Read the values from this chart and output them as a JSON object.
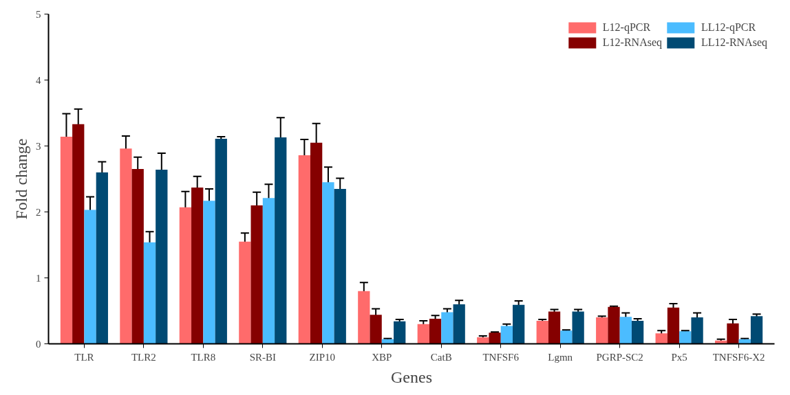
{
  "chart_data": {
    "type": "bar",
    "xlabel": "Genes",
    "ylabel": "Fold change",
    "categories": [
      "TLR",
      "TLR2",
      "TLR8",
      "SR-BI",
      "ZIP10",
      "XBP",
      "CatB",
      "TNFSF6",
      "Lgmn",
      "PGRP-SC2",
      "Px5",
      "TNFSF6-X2"
    ],
    "ylim": [
      0,
      5
    ],
    "yticks": [
      0,
      1,
      2,
      3,
      4,
      5
    ],
    "grid": false,
    "legend": "top right",
    "series": [
      {
        "name": "L12-qPCR",
        "color": "#ff6b6b",
        "values": [
          3.14,
          2.96,
          2.07,
          1.55,
          2.86,
          0.8,
          0.3,
          0.1,
          0.35,
          0.4,
          0.16,
          0.05
        ],
        "errors": [
          0.35,
          0.19,
          0.24,
          0.13,
          0.24,
          0.13,
          0.05,
          0.02,
          0.02,
          0.02,
          0.04,
          0.02
        ]
      },
      {
        "name": "L12-RNAseq",
        "color": "#850000",
        "values": [
          3.33,
          2.65,
          2.37,
          2.1,
          3.05,
          0.44,
          0.38,
          0.17,
          0.49,
          0.56,
          0.55,
          0.31
        ],
        "errors": [
          0.23,
          0.18,
          0.17,
          0.2,
          0.29,
          0.09,
          0.05,
          0.01,
          0.03,
          0.01,
          0.06,
          0.06
        ]
      },
      {
        "name": "LL12-qPCR",
        "color": "#4bbcff",
        "values": [
          2.03,
          1.54,
          2.17,
          2.21,
          2.45,
          0.07,
          0.48,
          0.27,
          0.2,
          0.41,
          0.19,
          0.07
        ],
        "errors": [
          0.2,
          0.16,
          0.18,
          0.21,
          0.23,
          0.01,
          0.05,
          0.03,
          0.01,
          0.06,
          0.01,
          0.01
        ]
      },
      {
        "name": "LL12-RNAseq",
        "color": "#004a73",
        "values": [
          2.6,
          2.64,
          3.11,
          3.13,
          2.35,
          0.34,
          0.6,
          0.59,
          0.49,
          0.35,
          0.4,
          0.42
        ],
        "errors": [
          0.16,
          0.25,
          0.03,
          0.3,
          0.16,
          0.03,
          0.06,
          0.06,
          0.03,
          0.03,
          0.07,
          0.03
        ]
      }
    ]
  }
}
